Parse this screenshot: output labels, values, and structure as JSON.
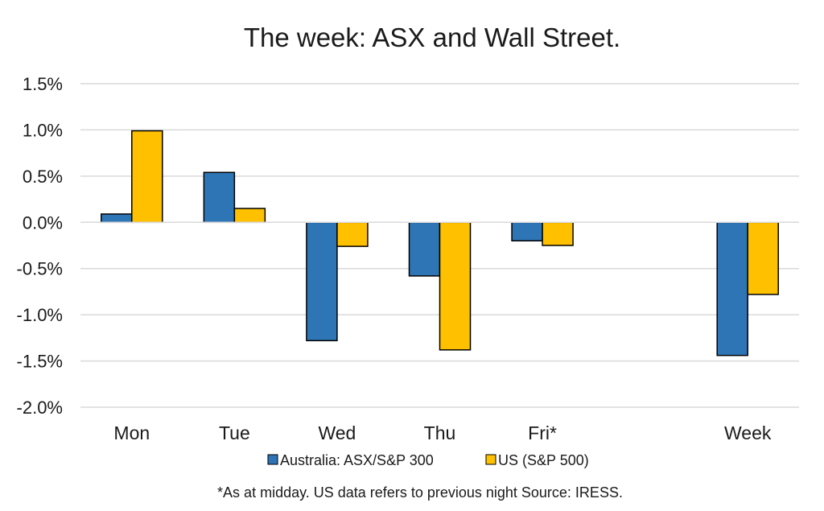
{
  "chart_data": {
    "type": "bar",
    "title": "The week:  ASX and Wall Street.",
    "categories": [
      "Mon",
      "Tue",
      "Wed",
      "Thu",
      "Fri*",
      "",
      "Week"
    ],
    "series": [
      {
        "name": "Australia: ASX/S&P 300",
        "color": "#2e75b6",
        "values": [
          0.09,
          0.54,
          -1.28,
          -0.58,
          -0.2,
          null,
          -1.44
        ]
      },
      {
        "name": "US (S&P 500)",
        "color": "#ffc000",
        "values": [
          0.99,
          0.15,
          -0.26,
          -1.38,
          -0.25,
          null,
          -0.78
        ]
      }
    ],
    "ylim": [
      -2.0,
      1.5
    ],
    "yticks": [
      1.5,
      1.0,
      0.5,
      0.0,
      -0.5,
      -1.0,
      -1.5,
      -2.0
    ],
    "ytick_labels": [
      "1.5%",
      "1.0%",
      "0.5%",
      "0.0%",
      "-0.5%",
      "-1.0%",
      "-1.5%",
      "-2.0%"
    ],
    "grid": true,
    "legend_position": "bottom",
    "footnote": "*As at midday. US data refers to previous night  Source:  IRESS."
  }
}
